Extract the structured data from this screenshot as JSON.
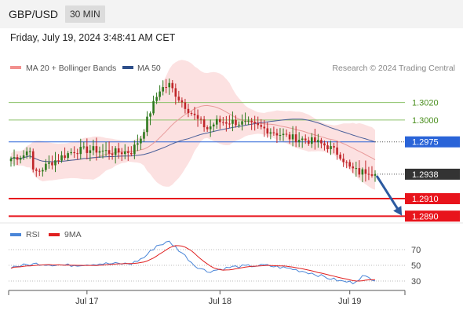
{
  "header": {
    "pair": "GBP/USD",
    "timeframe": "30 MIN"
  },
  "datetime": "Friday, July 19, 2024 3:48:41 AM CET",
  "legend": {
    "bb": "MA 20 + Bollinger Bands",
    "ma50": "MA 50",
    "rsi": "RSI",
    "rsi_ma": "9MA",
    "credit": "Research © 2024 Trading Central"
  },
  "colors": {
    "candle_up": "#2f7a1f",
    "candle_down": "#c0262a",
    "bb_fill": "#fbdcdc",
    "bb_ma": "#e89a9a",
    "ma50": "#4a5f9a",
    "resistance": "#8cc26a",
    "pivot": "#2a64d8",
    "support": "#e8141c",
    "last": "#333333",
    "rsi": "#4a86d8",
    "rsi_ma": "#e02020",
    "arrow": "#2c5aa0"
  },
  "chart_data": {
    "type": "candlestick",
    "instrument": "GBP/USD",
    "interval": "30 MIN",
    "x_ticks": [
      "Jul 17",
      "Jul 18",
      "Jul 19"
    ],
    "ylim": [
      1.2884,
      1.3052
    ],
    "levels": [
      {
        "label": "1.3020",
        "value": 1.302,
        "kind": "resistance"
      },
      {
        "label": "1.3000",
        "value": 1.3,
        "kind": "resistance"
      },
      {
        "label": "1.2975",
        "value": 1.2975,
        "kind": "pivot"
      },
      {
        "label": "1.2938",
        "value": 1.2938,
        "kind": "last"
      },
      {
        "label": "1.2910",
        "value": 1.291,
        "kind": "support"
      },
      {
        "label": "1.2890",
        "value": 1.289,
        "kind": "support"
      }
    ],
    "close_anchors": [
      [
        0,
        1.2956
      ],
      [
        4,
        1.296
      ],
      [
        6,
        1.2968
      ],
      [
        7,
        1.294
      ],
      [
        9,
        1.2942
      ],
      [
        12,
        1.295
      ],
      [
        16,
        1.2958
      ],
      [
        20,
        1.2965
      ],
      [
        26,
        1.2966
      ],
      [
        32,
        1.2963
      ],
      [
        38,
        1.2964
      ],
      [
        41,
        1.298
      ],
      [
        44,
        1.301
      ],
      [
        47,
        1.3035
      ],
      [
        50,
        1.304
      ],
      [
        53,
        1.3025
      ],
      [
        56,
        1.3012
      ],
      [
        59,
        1.3
      ],
      [
        62,
        1.299
      ],
      [
        65,
        1.2998
      ],
      [
        70,
        1.2998
      ],
      [
        75,
        1.2995
      ],
      [
        80,
        1.299
      ],
      [
        84,
        1.2985
      ],
      [
        88,
        1.298
      ],
      [
        92,
        1.2978
      ],
      [
        96,
        1.2975
      ],
      [
        100,
        1.297
      ],
      [
        104,
        1.296
      ],
      [
        107,
        1.2945
      ],
      [
        110,
        1.294
      ],
      [
        113,
        1.2942
      ],
      [
        115,
        1.2938
      ]
    ],
    "rsi": {
      "ylim": [
        20,
        80
      ],
      "ticks": [
        70,
        50,
        30
      ],
      "anchors": [
        [
          0,
          48
        ],
        [
          8,
          52
        ],
        [
          18,
          50
        ],
        [
          28,
          52
        ],
        [
          38,
          52
        ],
        [
          42,
          60
        ],
        [
          46,
          75
        ],
        [
          50,
          80
        ],
        [
          54,
          66
        ],
        [
          58,
          50
        ],
        [
          62,
          42
        ],
        [
          70,
          48
        ],
        [
          80,
          50
        ],
        [
          88,
          46
        ],
        [
          95,
          40
        ],
        [
          100,
          34
        ],
        [
          104,
          30
        ],
        [
          108,
          28
        ],
        [
          111,
          36
        ],
        [
          113,
          34
        ],
        [
          115,
          32
        ]
      ]
    }
  }
}
